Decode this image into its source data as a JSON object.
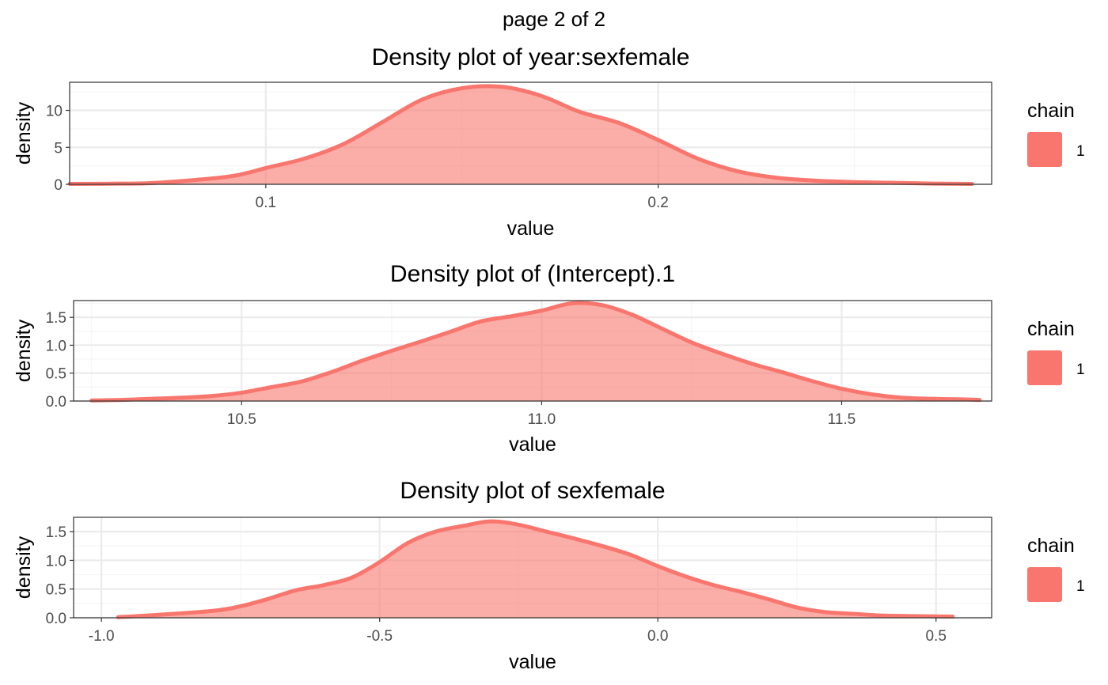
{
  "page_label": "page 2 of 2",
  "colors": {
    "fill": "#F8766D",
    "fill_opacity": 0.6,
    "line": "#F8766D",
    "panel_border": "#333333",
    "grid_major": "#EBEBEB",
    "grid_minor": "#F5F5F5",
    "text": "#000000",
    "tick_text": "#4D4D4D"
  },
  "chart_data": [
    {
      "type": "area",
      "title": "Density plot of  year:sexfemale",
      "xlabel": "value",
      "ylabel": "density",
      "xlim": [
        0.05,
        0.285
      ],
      "ylim": [
        0,
        13.8
      ],
      "xticks": [
        0.1,
        0.2
      ],
      "xtick_labels": [
        "0.1",
        "0.2"
      ],
      "xminor": [
        0.05,
        0.15,
        0.25
      ],
      "yticks": [
        0,
        5,
        10
      ],
      "ytick_labels": [
        "0",
        "5",
        "10"
      ],
      "grid": true,
      "legend": {
        "title": "chain",
        "entries": [
          "1"
        ],
        "position": "right"
      },
      "series": [
        {
          "name": "1",
          "x": [
            0.05,
            0.06,
            0.07,
            0.08,
            0.09,
            0.095,
            0.1,
            0.11,
            0.12,
            0.13,
            0.14,
            0.15,
            0.16,
            0.17,
            0.18,
            0.19,
            0.2,
            0.21,
            0.22,
            0.23,
            0.24,
            0.25,
            0.26,
            0.27,
            0.28
          ],
          "y": [
            0.05,
            0.08,
            0.15,
            0.5,
            1.0,
            1.5,
            2.2,
            3.5,
            5.5,
            8.5,
            11.5,
            13.0,
            13.2,
            12.0,
            9.8,
            8.3,
            6.0,
            3.5,
            1.8,
            0.9,
            0.5,
            0.3,
            0.2,
            0.1,
            0.05
          ]
        }
      ]
    },
    {
      "type": "area",
      "title": "Density plot of  (Intercept).1",
      "xlabel": "value",
      "ylabel": "density",
      "xlim": [
        10.22,
        11.75
      ],
      "ylim": [
        0,
        1.8
      ],
      "xticks": [
        10.5,
        11.0,
        11.5
      ],
      "xtick_labels": [
        "10.5",
        "11.0",
        "11.5"
      ],
      "xminor": [
        10.25,
        10.75,
        11.25,
        11.75
      ],
      "yticks": [
        0,
        0.5,
        1.0,
        1.5
      ],
      "ytick_labels": [
        "0.0",
        "0.5",
        "1.0",
        "1.5"
      ],
      "grid": true,
      "legend": {
        "title": "chain",
        "entries": [
          "1"
        ],
        "position": "right"
      },
      "series": [
        {
          "name": "1",
          "x": [
            10.25,
            10.3,
            10.35,
            10.4,
            10.45,
            10.5,
            10.55,
            10.6,
            10.65,
            10.7,
            10.75,
            10.8,
            10.85,
            10.9,
            10.95,
            11.0,
            11.05,
            11.1,
            11.15,
            11.2,
            11.25,
            11.3,
            11.35,
            11.4,
            11.45,
            11.5,
            11.55,
            11.6,
            11.65,
            11.7,
            11.73
          ],
          "y": [
            0.01,
            0.02,
            0.04,
            0.06,
            0.09,
            0.15,
            0.25,
            0.35,
            0.52,
            0.72,
            0.9,
            1.07,
            1.25,
            1.43,
            1.52,
            1.62,
            1.75,
            1.72,
            1.55,
            1.3,
            1.05,
            0.85,
            0.67,
            0.52,
            0.36,
            0.22,
            0.12,
            0.06,
            0.04,
            0.03,
            0.02
          ]
        }
      ]
    },
    {
      "type": "area",
      "title": "Density plot of  sexfemale",
      "xlabel": "value",
      "ylabel": "density",
      "xlim": [
        -1.05,
        0.6
      ],
      "ylim": [
        0,
        1.75
      ],
      "xticks": [
        -1.0,
        -0.5,
        0.0,
        0.5
      ],
      "xtick_labels": [
        "-1.0",
        "-0.5",
        "0.0",
        "0.5"
      ],
      "xminor": [
        -0.75,
        -0.25,
        0.25
      ],
      "yticks": [
        0,
        0.5,
        1.0,
        1.5
      ],
      "ytick_labels": [
        "0.0",
        "0.5",
        "1.0",
        "1.5"
      ],
      "grid": true,
      "legend": {
        "title": "chain",
        "entries": [
          "1"
        ],
        "position": "right"
      },
      "series": [
        {
          "name": "1",
          "x": [
            -0.97,
            -0.9,
            -0.8,
            -0.75,
            -0.7,
            -0.65,
            -0.6,
            -0.55,
            -0.5,
            -0.45,
            -0.4,
            -0.35,
            -0.3,
            -0.25,
            -0.2,
            -0.15,
            -0.1,
            -0.05,
            0.0,
            0.05,
            0.1,
            0.15,
            0.2,
            0.25,
            0.3,
            0.35,
            0.4,
            0.45,
            0.53
          ],
          "y": [
            0.01,
            0.05,
            0.12,
            0.2,
            0.33,
            0.48,
            0.57,
            0.7,
            0.97,
            1.3,
            1.5,
            1.6,
            1.68,
            1.62,
            1.5,
            1.38,
            1.25,
            1.1,
            0.9,
            0.72,
            0.57,
            0.45,
            0.32,
            0.18,
            0.1,
            0.07,
            0.04,
            0.03,
            0.02
          ]
        }
      ]
    }
  ]
}
